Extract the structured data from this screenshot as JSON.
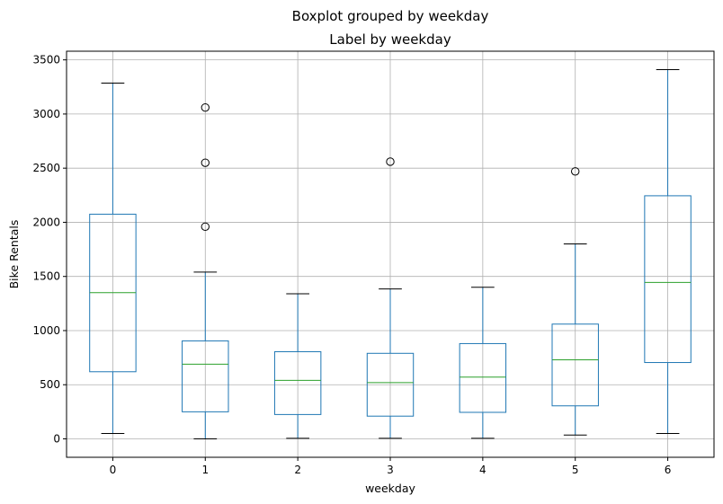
{
  "chart_data": {
    "type": "box",
    "suptitle": "Boxplot grouped by weekday",
    "title": "Label by weekday",
    "xlabel": "weekday",
    "ylabel": "Bike Rentals",
    "ylim": [
      -170,
      3580
    ],
    "yticks": [
      0,
      500,
      1000,
      1500,
      2000,
      2500,
      3000,
      3500
    ],
    "grid": true,
    "colors": {
      "box": "#1f77b4",
      "median": "#2ca02c",
      "cap": "#000000",
      "grid": "#b0b0b0"
    },
    "boxes": [
      {
        "label": "0",
        "whisker_low": 50,
        "q1": 620,
        "median": 1350,
        "q3": 2075,
        "whisker_high": 3285,
        "outliers": []
      },
      {
        "label": "1",
        "whisker_low": 0,
        "q1": 250,
        "median": 690,
        "q3": 905,
        "whisker_high": 1540,
        "outliers": [
          1960,
          2550,
          3060
        ]
      },
      {
        "label": "2",
        "whisker_low": 5,
        "q1": 225,
        "median": 540,
        "q3": 805,
        "whisker_high": 1340,
        "outliers": []
      },
      {
        "label": "3",
        "whisker_low": 5,
        "q1": 210,
        "median": 520,
        "q3": 790,
        "whisker_high": 1385,
        "outliers": [
          2560
        ]
      },
      {
        "label": "4",
        "whisker_low": 5,
        "q1": 245,
        "median": 570,
        "q3": 880,
        "whisker_high": 1400,
        "outliers": []
      },
      {
        "label": "5",
        "whisker_low": 35,
        "q1": 305,
        "median": 730,
        "q3": 1060,
        "whisker_high": 1800,
        "outliers": [
          2470
        ]
      },
      {
        "label": "6",
        "whisker_low": 50,
        "q1": 705,
        "median": 1445,
        "q3": 2245,
        "whisker_high": 3410,
        "outliers": []
      }
    ]
  }
}
